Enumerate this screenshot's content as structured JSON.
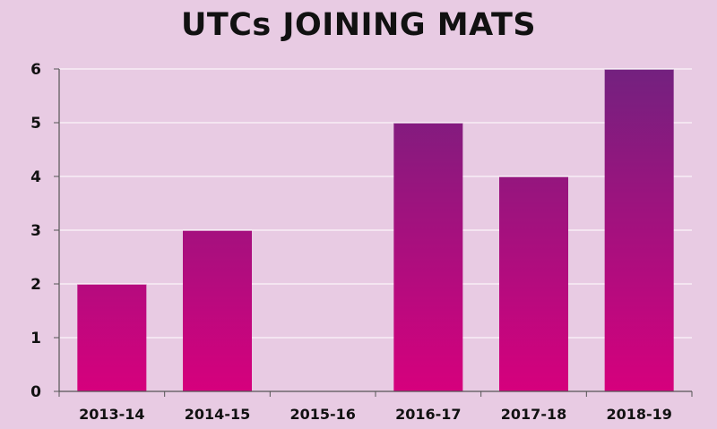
{
  "chart_data": {
    "type": "bar",
    "title": "UTCs JOINING MATS",
    "xlabel": "",
    "ylabel": "",
    "categories": [
      "2013-14",
      "2014-15",
      "2015-16",
      "2016-17",
      "2017-18",
      "2018-19"
    ],
    "values": [
      2,
      3,
      0,
      5,
      4,
      6
    ],
    "ylim": [
      0,
      6
    ],
    "yticks": [
      0,
      1,
      2,
      3,
      4,
      5,
      6
    ],
    "grid": true,
    "legend": "none",
    "colors": {
      "background": "#e8cbe3",
      "bar_top": "#73217f",
      "bar_bottom": "#d6007d",
      "axis": "#555555",
      "grid": "#ffffff",
      "text": "#111111"
    }
  }
}
